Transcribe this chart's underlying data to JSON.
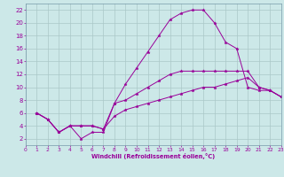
{
  "xlabel": "Windchill (Refroidissement éolien,°C)",
  "bg_color": "#cce8e8",
  "grid_color": "#aac8c8",
  "line_color": "#990099",
  "spine_color": "#7799aa",
  "xlim": [
    0,
    23
  ],
  "ylim": [
    1,
    23
  ],
  "xticks": [
    0,
    1,
    2,
    3,
    4,
    5,
    6,
    7,
    8,
    9,
    10,
    11,
    12,
    13,
    14,
    15,
    16,
    17,
    18,
    19,
    20,
    21,
    22,
    23
  ],
  "yticks": [
    2,
    4,
    6,
    8,
    10,
    12,
    14,
    16,
    18,
    20,
    22
  ],
  "series": [
    [
      6.0,
      5.0,
      3.0,
      4.0,
      2.0,
      3.0,
      3.0,
      7.5,
      10.5,
      13.0,
      15.5,
      18.0,
      20.5,
      21.5,
      22.0,
      22.0,
      20.0,
      17.0,
      16.0,
      10.0,
      9.5,
      9.5,
      8.5
    ],
    [
      6.0,
      5.0,
      3.0,
      4.0,
      4.0,
      4.0,
      3.5,
      7.5,
      8.0,
      9.0,
      10.0,
      11.0,
      12.0,
      12.5,
      12.5,
      12.5,
      12.5,
      12.5,
      12.5,
      12.5,
      10.0,
      9.5,
      8.5
    ],
    [
      6.0,
      5.0,
      3.0,
      4.0,
      4.0,
      4.0,
      3.5,
      5.5,
      6.5,
      7.0,
      7.5,
      8.0,
      8.5,
      9.0,
      9.5,
      10.0,
      10.0,
      10.5,
      11.0,
      11.5,
      10.0,
      9.5,
      8.5
    ]
  ],
  "marker": "*",
  "markersize": 2.5,
  "linewidth": 0.7
}
